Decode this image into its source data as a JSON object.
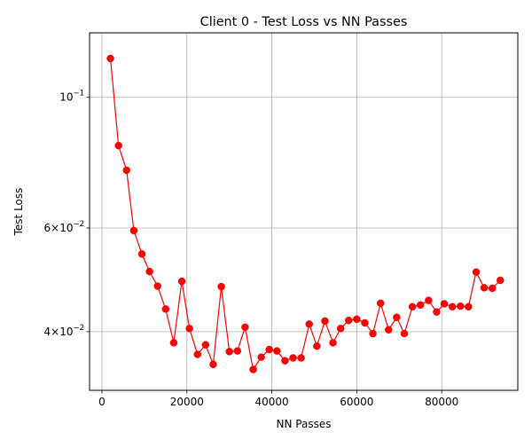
{
  "chart_data": {
    "type": "line",
    "title": "Client 0 - Test Loss vs NN Passes",
    "xlabel": "NN Passes",
    "ylabel": "Test Loss",
    "y_scale": "log",
    "xlim": [
      -2920,
      97920
    ],
    "ylim": [
      0.0318,
      0.1287
    ],
    "x_ticks": [
      {
        "value": 0,
        "label": "0"
      },
      {
        "value": 20000,
        "label": "20000"
      },
      {
        "value": 40000,
        "label": "40000"
      },
      {
        "value": 60000,
        "label": "60000"
      },
      {
        "value": 80000,
        "label": "80000"
      }
    ],
    "y_ticks": [
      {
        "value": 0.04,
        "mantissa": "4",
        "exponent": "−2"
      },
      {
        "value": 0.06,
        "mantissa": "6",
        "exponent": "−2"
      },
      {
        "value": 0.1,
        "mantissa": "10",
        "exponent": "−1"
      }
    ],
    "grid": true,
    "series": [
      {
        "color": "#ff0000",
        "marker": "circle",
        "x": [
          2000,
          3900,
          5800,
          7500,
          9400,
          11200,
          13100,
          15000,
          16900,
          18800,
          20600,
          22500,
          24400,
          26200,
          28100,
          30000,
          31900,
          33700,
          35600,
          37500,
          39400,
          41200,
          43100,
          45000,
          46900,
          48800,
          50600,
          52500,
          54400,
          56200,
          58100,
          60000,
          61900,
          63800,
          65600,
          67500,
          69400,
          71200,
          73100,
          75000,
          76900,
          78800,
          80600,
          82500,
          84400,
          86300,
          88100,
          90000,
          91900,
          93800
        ],
        "y": [
          0.1164,
          0.0828,
          0.0752,
          0.0594,
          0.0542,
          0.0506,
          0.0478,
          0.0437,
          0.0383,
          0.0487,
          0.0405,
          0.0366,
          0.038,
          0.0352,
          0.0477,
          0.037,
          0.0371,
          0.0407,
          0.0345,
          0.0362,
          0.0373,
          0.0371,
          0.0357,
          0.0361,
          0.0361,
          0.0412,
          0.0378,
          0.0417,
          0.0383,
          0.0405,
          0.0418,
          0.042,
          0.0414,
          0.0397,
          0.0447,
          0.0403,
          0.0423,
          0.0397,
          0.0441,
          0.0444,
          0.0452,
          0.0432,
          0.0446,
          0.0441,
          0.0442,
          0.0441,
          0.0505,
          0.0475,
          0.0474,
          0.0489
        ]
      }
    ]
  }
}
